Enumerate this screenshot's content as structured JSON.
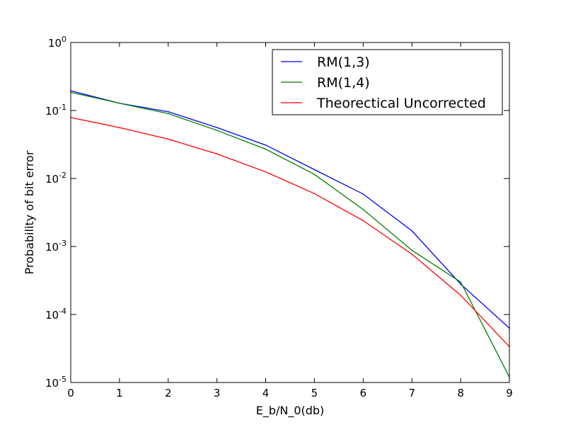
{
  "chart_data": {
    "type": "line",
    "xlabel": "E_b/N_0(db)",
    "ylabel": "Probability of bit error",
    "xlim": [
      0,
      9
    ],
    "ylim": [
      1e-05,
      1
    ],
    "yscale": "log",
    "grid": false,
    "legend_placement": "top-right",
    "x_ticks": [
      "0",
      "1",
      "2",
      "3",
      "4",
      "5",
      "6",
      "7",
      "8",
      "9"
    ],
    "y_ticks": [
      {
        "value": 1,
        "base": "10",
        "exp": "0"
      },
      {
        "value": 0.1,
        "base": "10",
        "exp": "-1"
      },
      {
        "value": 0.01,
        "base": "10",
        "exp": "-2"
      },
      {
        "value": 0.001,
        "base": "10",
        "exp": "-3"
      },
      {
        "value": 0.0001,
        "base": "10",
        "exp": "-4"
      },
      {
        "value": 1e-05,
        "base": "10",
        "exp": "-5"
      }
    ],
    "x": [
      0,
      1,
      2,
      3,
      4,
      5,
      6,
      7,
      8,
      9
    ],
    "series": [
      {
        "name": "RM(1,3)",
        "color": "#0000ff",
        "values": [
          0.195,
          0.128,
          0.096,
          0.056,
          0.031,
          0.0135,
          0.0059,
          0.0017,
          0.00028,
          6.3e-05
        ]
      },
      {
        "name": "RM(1,4)",
        "color": "#008000",
        "values": [
          0.185,
          0.128,
          0.09,
          0.051,
          0.027,
          0.0115,
          0.0035,
          0.00088,
          0.0003,
          1.2e-05
        ]
      },
      {
        "name": "Theorectical Uncorrected",
        "color": "#ff0000",
        "values": [
          0.079,
          0.056,
          0.038,
          0.023,
          0.0125,
          0.006,
          0.0024,
          0.00077,
          0.000192,
          3.36e-05
        ]
      }
    ]
  }
}
